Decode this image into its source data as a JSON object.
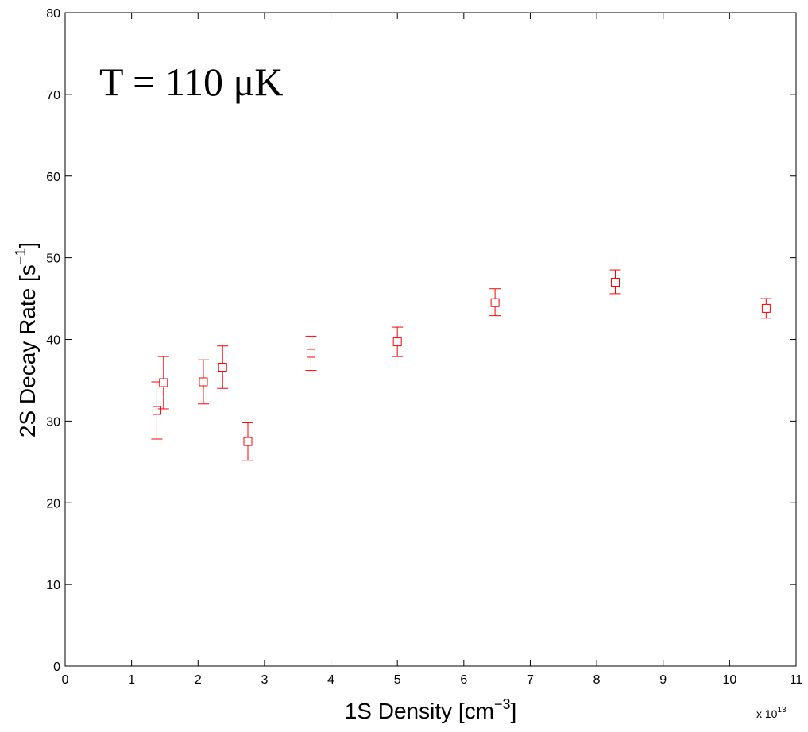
{
  "chart_data": {
    "type": "scatter",
    "annotation": "T = 110 μK",
    "xlabel": "1S Density [cm",
    "xlabel_sup": "−3",
    "xlabel_end": "]",
    "ylabel": "2S Decay Rate [s",
    "ylabel_sup": "−1",
    "ylabel_end": "]",
    "x_multiplier": "x 10",
    "x_multiplier_exp": "13",
    "xlim": [
      0,
      11
    ],
    "ylim": [
      0,
      80
    ],
    "xticks": [
      0,
      1,
      2,
      3,
      4,
      5,
      6,
      7,
      8,
      9,
      10,
      11
    ],
    "yticks": [
      0,
      10,
      20,
      30,
      40,
      50,
      60,
      70,
      80
    ],
    "grid": false,
    "marker": "square",
    "series_color": "#ff0000",
    "points": [
      {
        "x": 1.38,
        "y": 31.3,
        "ylow": 27.8,
        "yhigh": 34.8
      },
      {
        "x": 1.48,
        "y": 34.7,
        "ylow": 31.5,
        "yhigh": 37.9
      },
      {
        "x": 2.08,
        "y": 34.8,
        "ylow": 32.1,
        "yhigh": 37.5
      },
      {
        "x": 2.37,
        "y": 36.6,
        "ylow": 34.0,
        "yhigh": 39.2
      },
      {
        "x": 2.75,
        "y": 27.5,
        "ylow": 25.2,
        "yhigh": 29.8
      },
      {
        "x": 3.7,
        "y": 38.3,
        "ylow": 36.2,
        "yhigh": 40.4
      },
      {
        "x": 5.0,
        "y": 39.7,
        "ylow": 37.9,
        "yhigh": 41.5
      },
      {
        "x": 6.47,
        "y": 44.5,
        "ylow": 42.9,
        "yhigh": 46.2
      },
      {
        "x": 8.28,
        "y": 47.0,
        "ylow": 45.6,
        "yhigh": 48.5
      },
      {
        "x": 10.55,
        "y": 43.8,
        "ylow": 42.6,
        "yhigh": 45.0
      }
    ]
  }
}
